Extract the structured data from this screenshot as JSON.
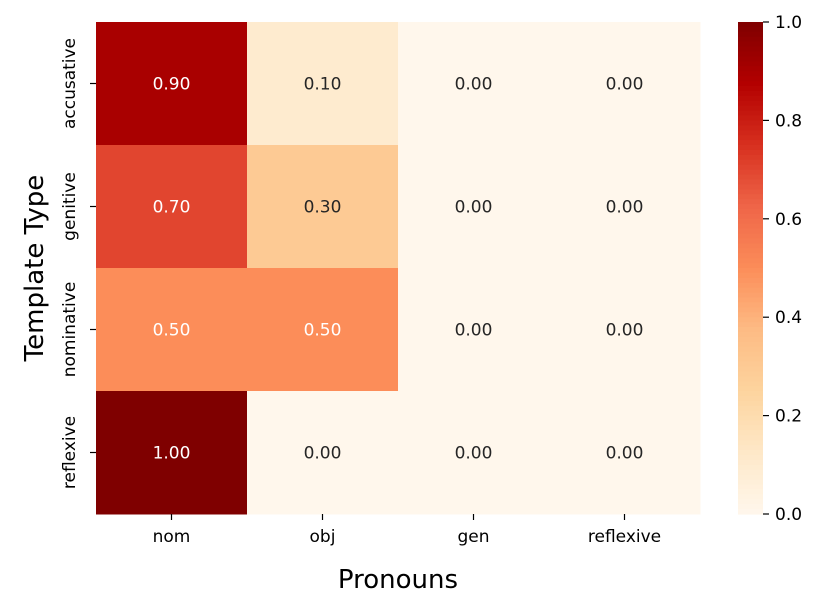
{
  "chart_data": {
    "type": "heatmap",
    "xlabel": "Pronouns",
    "ylabel": "Template Type",
    "x_categories": [
      "nom",
      "obj",
      "gen",
      "reflexive"
    ],
    "y_categories": [
      "accusative",
      "genitive",
      "nominative",
      "reflexive"
    ],
    "values": [
      [
        0.9,
        0.1,
        0.0,
        0.0
      ],
      [
        0.7,
        0.3,
        0.0,
        0.0
      ],
      [
        0.5,
        0.5,
        0.0,
        0.0
      ],
      [
        1.0,
        0.0,
        0.0,
        0.0
      ]
    ],
    "cell_labels": [
      [
        "0.90",
        "0.10",
        "0.00",
        "0.00"
      ],
      [
        "0.70",
        "0.30",
        "0.00",
        "0.00"
      ],
      [
        "0.50",
        "0.50",
        "0.00",
        "0.00"
      ],
      [
        "1.00",
        "0.00",
        "0.00",
        "0.00"
      ]
    ],
    "colorbar": {
      "range": [
        0.0,
        1.0
      ],
      "ticks": [
        0.0,
        0.2,
        0.4,
        0.6,
        0.8,
        1.0
      ],
      "tick_labels": [
        "0.0",
        "0.2",
        "0.4",
        "0.6",
        "0.8",
        "1.0"
      ],
      "colormap": "OrRd",
      "legend_position": "right"
    },
    "colors": {
      "label_light": "#ffffff",
      "label_dark": "#262626",
      "axis": "#000000"
    }
  }
}
